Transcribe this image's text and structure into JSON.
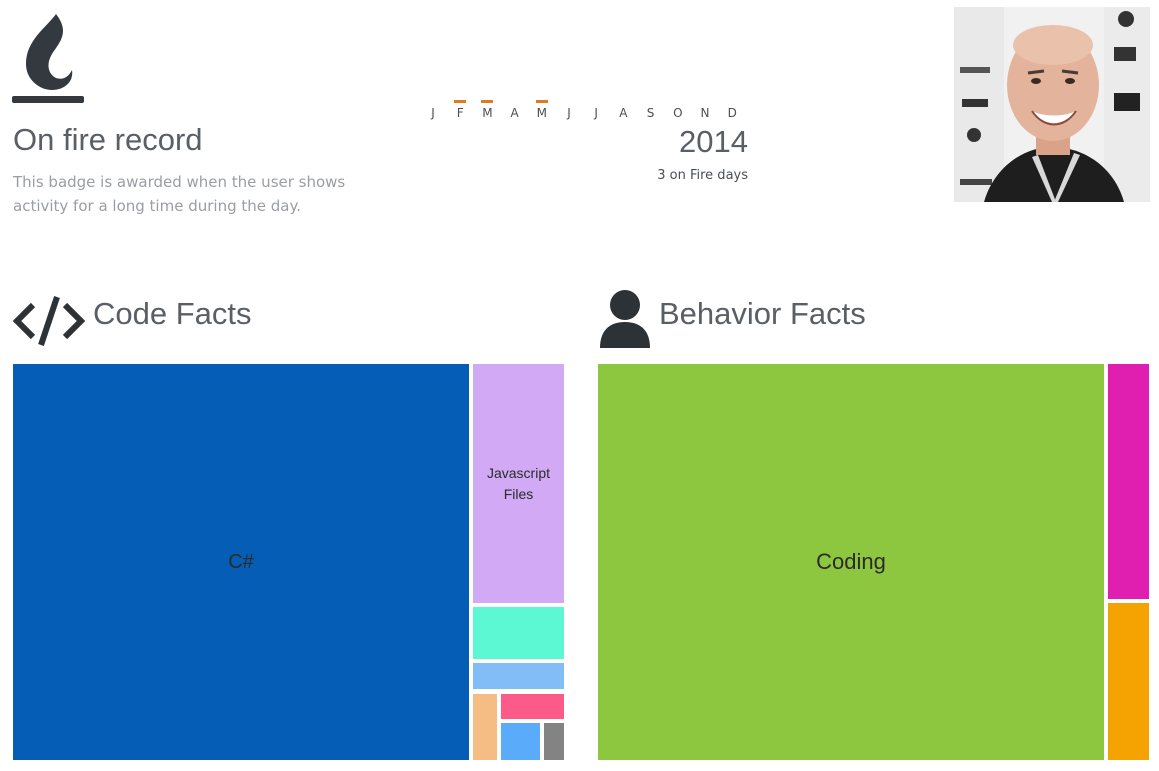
{
  "badge": {
    "icon": "flame-icon",
    "title": "On fire record",
    "description": "This badge is awarded when the user shows activity for a long time during the day."
  },
  "timeline": {
    "months": [
      {
        "label": "J",
        "active": false
      },
      {
        "label": "F",
        "active": true
      },
      {
        "label": "M",
        "active": true
      },
      {
        "label": "A",
        "active": false
      },
      {
        "label": "M",
        "active": true
      },
      {
        "label": "J",
        "active": false
      },
      {
        "label": "J",
        "active": false
      },
      {
        "label": "A",
        "active": false
      },
      {
        "label": "S",
        "active": false
      },
      {
        "label": "O",
        "active": false
      },
      {
        "label": "N",
        "active": false
      },
      {
        "label": "D",
        "active": false
      }
    ],
    "marker_color": "#e07a1f",
    "year": "2014",
    "fire_days": "3 on Fire days"
  },
  "profile": {
    "avatar": "user-photo"
  },
  "code_facts": {
    "icon": "code-icon",
    "title": "Code Facts",
    "tiles": [
      {
        "name": "csharp",
        "label": "C#",
        "color": "#055db5"
      },
      {
        "name": "javascript-files",
        "label": "Javascript Files",
        "color": "#d1a9f5"
      },
      {
        "name": "mint",
        "label": "",
        "color": "#5bf8d3"
      },
      {
        "name": "light-blue",
        "label": "",
        "color": "#83bdf7"
      },
      {
        "name": "peach",
        "label": "",
        "color": "#f5bd83"
      },
      {
        "name": "pink",
        "label": "",
        "color": "#fc5a88"
      },
      {
        "name": "sky-blue",
        "label": "",
        "color": "#5aacfa"
      },
      {
        "name": "gray",
        "label": "",
        "color": "#838383"
      }
    ]
  },
  "behavior_facts": {
    "icon": "user-icon",
    "title": "Behavior Facts",
    "tiles": [
      {
        "name": "coding",
        "label": "Coding",
        "color": "#8dc63f"
      },
      {
        "name": "magenta",
        "label": "",
        "color": "#e01eb0"
      },
      {
        "name": "orange",
        "label": "",
        "color": "#f5a203"
      }
    ]
  }
}
